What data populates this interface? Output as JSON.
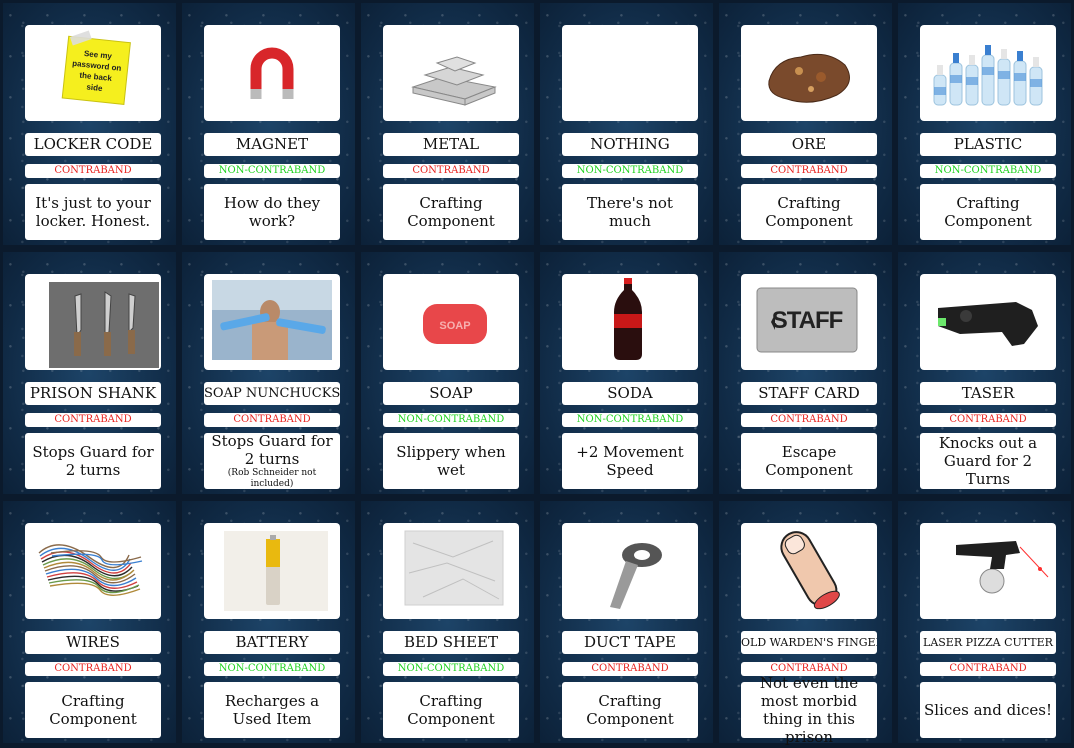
{
  "colors": {
    "contraband": "#e8231f",
    "non_contraband": "#1fd21f",
    "card_bg": "#143352"
  },
  "cards": [
    {
      "name": "LOCKER CODE",
      "status": "CONTRABAND",
      "contraband": true,
      "desc": "It's just to your locker. Honest.",
      "sub": "",
      "icon": "sticky-note-icon",
      "note_text": "See my password on the back side"
    },
    {
      "name": "MAGNET",
      "status": "NON-CONTRABAND",
      "contraband": false,
      "desc": "How do they work?",
      "sub": "",
      "icon": "magnet-icon"
    },
    {
      "name": "METAL",
      "status": "CONTRABAND",
      "contraband": true,
      "desc": "Crafting Component",
      "sub": "",
      "icon": "metal-ingots-icon"
    },
    {
      "name": "NOTHING",
      "status": "NON-CONTRABAND",
      "contraband": false,
      "desc": "There's not much",
      "sub": "",
      "icon": "empty-icon"
    },
    {
      "name": "ORE",
      "status": "CONTRABAND",
      "contraband": true,
      "desc": "Crafting Component",
      "sub": "",
      "icon": "ore-rock-icon"
    },
    {
      "name": "PLASTIC",
      "status": "NON-CONTRABAND",
      "contraband": false,
      "desc": "Crafting Component",
      "sub": "",
      "icon": "plastic-bottles-icon"
    },
    {
      "name": "PRISON SHANK",
      "status": "CONTRABAND",
      "contraband": true,
      "desc": "Stops Guard for 2 turns",
      "sub": "",
      "icon": "shank-icon"
    },
    {
      "name": "SOAP NUNCHUCKS",
      "status": "CONTRABAND",
      "contraband": true,
      "desc": "Stops Guard for 2 turns",
      "sub": "(Rob Schneider not included)",
      "icon": "nunchucks-photo-icon"
    },
    {
      "name": "SOAP",
      "status": "NON-CONTRABAND",
      "contraband": false,
      "desc": "Slippery when wet",
      "sub": "",
      "icon": "soap-bar-icon",
      "soap_text": "SOAP"
    },
    {
      "name": "SODA",
      "status": "NON-CONTRABAND",
      "contraband": false,
      "desc": "+2 Movement Speed",
      "sub": "",
      "icon": "soda-bottle-icon"
    },
    {
      "name": "STAFF CARD",
      "status": "CONTRABAND",
      "contraband": true,
      "desc": "Escape Component",
      "sub": "",
      "icon": "staff-card-icon",
      "card_text": "STAFF"
    },
    {
      "name": "TASER",
      "status": "CONTRABAND",
      "contraband": true,
      "desc": "Knocks out a Guard for 2 Turns",
      "sub": "",
      "icon": "taser-icon"
    },
    {
      "name": "WIRES",
      "status": "CONTRABAND",
      "contraband": true,
      "desc": "Crafting Component",
      "sub": "",
      "icon": "wires-icon"
    },
    {
      "name": "BATTERY",
      "status": "NON-CONTRABAND",
      "contraband": false,
      "desc": "Recharges a Used Item",
      "sub": "",
      "icon": "battery-icon"
    },
    {
      "name": "BED SHEET",
      "status": "NON-CONTRABAND",
      "contraband": false,
      "desc": "Crafting Component",
      "sub": "",
      "icon": "bed-sheet-icon"
    },
    {
      "name": "DUCT TAPE",
      "status": "CONTRABAND",
      "contraband": true,
      "desc": "Crafting Component",
      "sub": "",
      "icon": "duct-tape-icon"
    },
    {
      "name": "OLD WARDEN'S FINGER",
      "status": "CONTRABAND",
      "contraband": true,
      "desc": "Not even the most morbid thing in this prison",
      "sub": "",
      "icon": "finger-icon"
    },
    {
      "name": "LASER PIZZA CUTTER",
      "status": "CONTRABAND",
      "contraband": true,
      "desc": "Slices and dices!",
      "sub": "",
      "icon": "laser-pizza-cutter-icon"
    }
  ]
}
